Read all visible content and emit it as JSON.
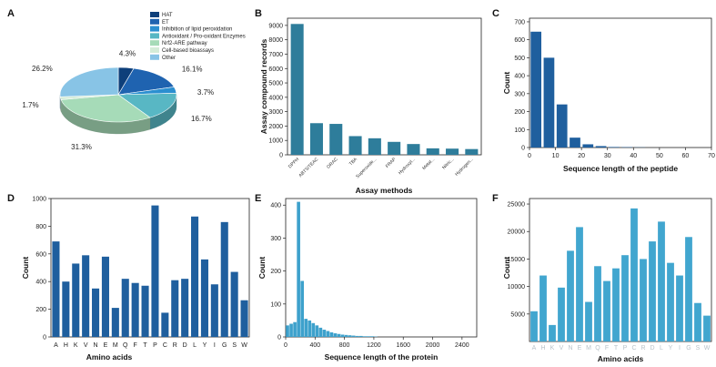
{
  "colors": {
    "bar_dark": "#1f5f9e",
    "bar_teal": "#3a8aa6",
    "bar_light": "#41a6cf",
    "axis": "#222222"
  },
  "chart_data": [
    {
      "panel": "A",
      "type": "pie",
      "title": "",
      "legend": [
        "HAT",
        "ET",
        "Inhibition of lipid peroxidation",
        "Antioxidant / Pro-oxidant Enzymes",
        "Nrf2-ARE pathway",
        "Cell-based bioassays",
        "Other"
      ],
      "slices": [
        {
          "label": "HAT",
          "value": 4.3,
          "text": "4.3%",
          "color": "#0e3f7a"
        },
        {
          "label": "ET",
          "value": 16.1,
          "text": "16.1%",
          "color": "#1f63b0"
        },
        {
          "label": "Inhibition of lipid peroxidation",
          "value": 3.7,
          "text": "3.7%",
          "color": "#2b8fd0"
        },
        {
          "label": "Antioxidant / Pro-oxidant Enzymes",
          "value": 16.7,
          "text": "16.7%",
          "color": "#58b7c4"
        },
        {
          "label": "Nrf2-ARE pathway",
          "value": 31.3,
          "text": "31.3%",
          "color": "#a6dbb8"
        },
        {
          "label": "Cell-based bioassays",
          "value": 1.7,
          "text": "1.7%",
          "color": "#d4ecd8"
        },
        {
          "label": "Other",
          "value": 26.2,
          "text": "26.2%",
          "color": "#88c4e6"
        }
      ]
    },
    {
      "panel": "B",
      "type": "bar",
      "categories": [
        "DPPH",
        "ABTS/TEAC",
        "ORAC",
        "TBA",
        "Superoxide...",
        "FRAP",
        "Hydroxyl...",
        "Metal...",
        "Nitric...",
        "Hydrogen..."
      ],
      "values": [
        9100,
        2200,
        2150,
        1300,
        1150,
        900,
        750,
        450,
        430,
        400
      ],
      "xlabel": "Assay methods",
      "ylabel": "Assay compound records",
      "ylim": [
        0,
        9500
      ],
      "yticks": [
        0,
        1000,
        2000,
        3000,
        4000,
        5000,
        6000,
        7000,
        8000,
        9000
      ],
      "color": "#2e7d9b"
    },
    {
      "panel": "C",
      "type": "bar",
      "x": [
        2.5,
        7.5,
        12.5,
        17.5,
        22.5,
        27.5,
        32.5,
        37.5,
        42.5
      ],
      "values": [
        645,
        500,
        240,
        55,
        18,
        8,
        3,
        2,
        1
      ],
      "xlabel": "Sequence length of the peptide",
      "ylabel": "Count",
      "xlim": [
        0,
        70
      ],
      "ylim": [
        0,
        720
      ],
      "xticks": [
        0,
        10,
        20,
        30,
        40,
        50,
        60,
        70
      ],
      "yticks": [
        0,
        100,
        200,
        300,
        400,
        500,
        600,
        700
      ],
      "color": "#1f5f9e"
    },
    {
      "panel": "D",
      "type": "bar",
      "categories": [
        "A",
        "H",
        "K",
        "V",
        "N",
        "E",
        "M",
        "Q",
        "F",
        "T",
        "P",
        "C",
        "R",
        "D",
        "L",
        "Y",
        "I",
        "G",
        "S",
        "W"
      ],
      "values": [
        690,
        400,
        530,
        590,
        350,
        580,
        210,
        420,
        390,
        370,
        950,
        175,
        410,
        420,
        870,
        560,
        380,
        830,
        470,
        265
      ],
      "xlabel": "Amino acids",
      "ylabel": "Count",
      "ylim": [
        0,
        1000
      ],
      "yticks": [
        0,
        200,
        400,
        600,
        800,
        1000
      ],
      "color": "#1f5f9e"
    },
    {
      "panel": "E",
      "type": "bar",
      "x": [
        25,
        75,
        125,
        175,
        225,
        275,
        325,
        375,
        425,
        475,
        525,
        575,
        625,
        675,
        725,
        775,
        825,
        875,
        925,
        975,
        1025,
        1075,
        1125,
        1175,
        1225
      ],
      "values": [
        35,
        40,
        45,
        410,
        170,
        55,
        50,
        42,
        35,
        28,
        22,
        18,
        14,
        11,
        9,
        7,
        6,
        5,
        4,
        3,
        3,
        2,
        2,
        2,
        1
      ],
      "xlabel": "Sequence length of the protein",
      "ylabel": "Count",
      "xlim": [
        0,
        2600
      ],
      "ylim": [
        0,
        420
      ],
      "xticks": [
        0,
        400,
        800,
        1200,
        1600,
        2000,
        2400
      ],
      "yticks": [
        0,
        100,
        200,
        300,
        400
      ],
      "color": "#3da1cc"
    },
    {
      "panel": "F",
      "type": "bar",
      "categories": [
        "A",
        "H",
        "K",
        "V",
        "N",
        "E",
        "M",
        "Q",
        "F",
        "T",
        "P",
        "C",
        "R",
        "D",
        "L",
        "Y",
        "I",
        "G",
        "S",
        "W"
      ],
      "values": [
        5500,
        12000,
        3000,
        9800,
        16500,
        20800,
        7200,
        13700,
        11000,
        13300,
        15700,
        24200,
        15000,
        18200,
        21800,
        14300,
        12000,
        19000,
        7000,
        4700
      ],
      "xlabel": "Amino acids",
      "ylabel": "Count",
      "ylim": [
        0,
        26000
      ],
      "yticks": [
        5000,
        10000,
        15000,
        20000,
        25000
      ],
      "color": "#41a6cf"
    }
  ]
}
